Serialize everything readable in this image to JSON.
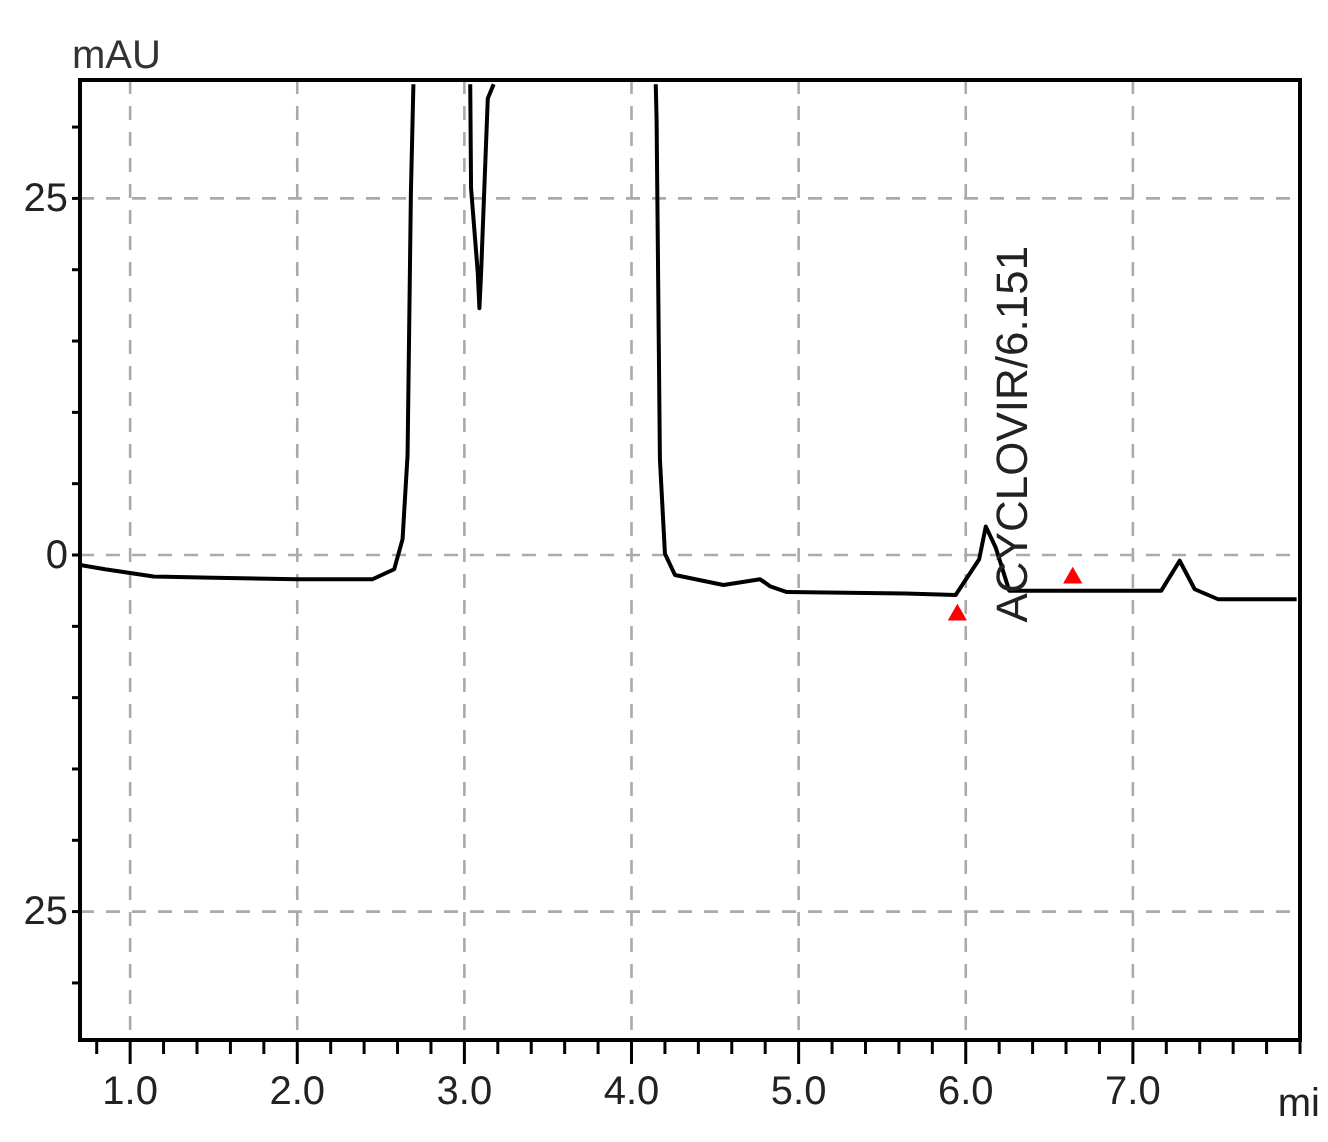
{
  "chart_data": {
    "type": "line",
    "xlabel": "mi",
    "ylabel": "mAU",
    "xlim": [
      0.7,
      8.0
    ],
    "ylim": [
      -34,
      33.3
    ],
    "xticks": [
      {
        "value": 0.8,
        "label": null
      },
      {
        "value": 1.0,
        "label": "1.0"
      },
      {
        "value": 1.2,
        "label": null
      },
      {
        "value": 1.4,
        "label": null
      },
      {
        "value": 1.6,
        "label": null
      },
      {
        "value": 1.8,
        "label": null
      },
      {
        "value": 2.0,
        "label": "2.0"
      },
      {
        "value": 2.2,
        "label": null
      },
      {
        "value": 2.4,
        "label": null
      },
      {
        "value": 2.6,
        "label": null
      },
      {
        "value": 2.8,
        "label": null
      },
      {
        "value": 3.0,
        "label": "3.0"
      },
      {
        "value": 3.2,
        "label": null
      },
      {
        "value": 3.4,
        "label": null
      },
      {
        "value": 3.6,
        "label": null
      },
      {
        "value": 3.8,
        "label": null
      },
      {
        "value": 4.0,
        "label": "4.0"
      },
      {
        "value": 4.2,
        "label": null
      },
      {
        "value": 4.4,
        "label": null
      },
      {
        "value": 4.6,
        "label": null
      },
      {
        "value": 4.8,
        "label": null
      },
      {
        "value": 5.0,
        "label": "5.0"
      },
      {
        "value": 5.2,
        "label": null
      },
      {
        "value": 5.4,
        "label": null
      },
      {
        "value": 5.6,
        "label": null
      },
      {
        "value": 5.8,
        "label": null
      },
      {
        "value": 6.0,
        "label": "6.0"
      },
      {
        "value": 6.2,
        "label": null
      },
      {
        "value": 6.4,
        "label": null
      },
      {
        "value": 6.6,
        "label": null
      },
      {
        "value": 6.8,
        "label": null
      },
      {
        "value": 7.0,
        "label": "7.0"
      },
      {
        "value": 7.2,
        "label": null
      },
      {
        "value": 7.4,
        "label": null
      },
      {
        "value": 7.6,
        "label": null
      },
      {
        "value": 7.8,
        "label": null
      },
      {
        "value": 8.0,
        "label": null
      }
    ],
    "yticks": [
      {
        "value": -30,
        "label": null
      },
      {
        "value": -25,
        "label": "25"
      },
      {
        "value": -20,
        "label": null
      },
      {
        "value": -15,
        "label": null
      },
      {
        "value": -10,
        "label": null
      },
      {
        "value": -5,
        "label": null
      },
      0,
      {
        "value": 5,
        "label": null
      },
      {
        "value": 10,
        "label": null
      },
      {
        "value": 15,
        "label": null
      },
      {
        "value": 20,
        "label": null
      },
      {
        "value": 25,
        "label": "25"
      },
      {
        "value": 30,
        "label": null
      }
    ],
    "grid": true,
    "series": [
      {
        "color": "#000000",
        "x": [
          0.7,
          0.85,
          1.14,
          1.5,
          2.0,
          2.45,
          2.58,
          2.63,
          2.66,
          2.68,
          2.695,
          2.7,
          3.03,
          3.035,
          3.04,
          3.08,
          3.09,
          3.1,
          3.14,
          3.175,
          3.18,
          4.145,
          4.15,
          4.17,
          4.2,
          4.26,
          4.55,
          4.77,
          4.83,
          4.93,
          5.64,
          5.94,
          6.08,
          6.12,
          6.18,
          6.26,
          7.17,
          7.28,
          7.37,
          7.51,
          7.98
        ],
        "values": [
          -0.7,
          -1.0,
          -1.5,
          -1.6,
          -1.7,
          -1.7,
          -1.0,
          1.1,
          7.0,
          25.4,
          33.0,
          null,
          null,
          33.0,
          25.7,
          19.8,
          17.3,
          19.8,
          32.0,
          33.0,
          null,
          33.0,
          30.6,
          6.7,
          0.1,
          -1.4,
          -2.1,
          -1.7,
          -2.2,
          -2.6,
          -2.7,
          -2.8,
          -0.3,
          2.0,
          0.5,
          -2.5,
          -2.5,
          -0.4,
          -2.4,
          -3.1,
          -3.1
        ]
      },
      {
        "type": "scatter",
        "color": "#ff0000",
        "marker": "triangle",
        "x": [
          5.95,
          6.64
        ],
        "values": [
          -4.2,
          -1.6
        ]
      }
    ],
    "annotations": [
      {
        "text": "ACYCLOVIR/6.151",
        "x": 6.151,
        "y": 2.0
      }
    ]
  }
}
